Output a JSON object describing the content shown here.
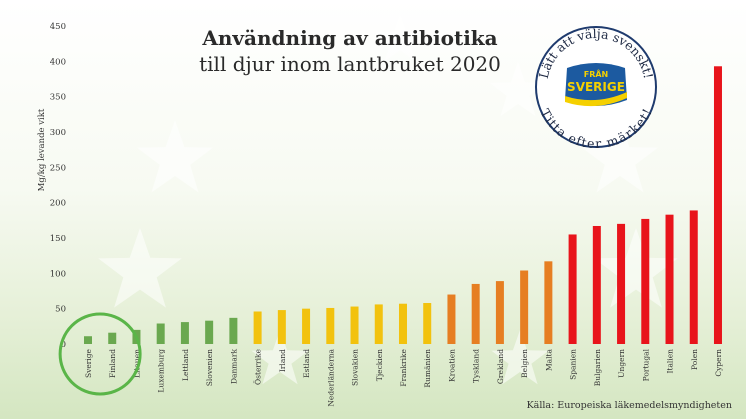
{
  "chart_data": {
    "type": "bar",
    "title": "Användning av antibiotika",
    "subtitle": "till djur inom lantbruket 2020",
    "ylabel": "Mg/kg levande vikt",
    "xlabel": "",
    "ylim": [
      0,
      450
    ],
    "yticks": [
      "0",
      "50",
      "100",
      "150",
      "200",
      "250",
      "300",
      "350",
      "400",
      "450"
    ],
    "grid": false,
    "categories": [
      "Sverige",
      "Finland",
      "Litauen",
      "Luxemburg",
      "Lettland",
      "Slovenien",
      "Danmark",
      "Österrike",
      "Irland",
      "Estland",
      "Nederländerna",
      "Slovakien",
      "Tjeckien",
      "Frankrike",
      "Rumänien",
      "Kroatien",
      "Tyskland",
      "Grekland",
      "Belgien",
      "Malta",
      "Spanien",
      "Bulgarien",
      "Ungern",
      "Portugal",
      "Italien",
      "Polen",
      "Cypern"
    ],
    "values": [
      11,
      16,
      20,
      29,
      31,
      33,
      37,
      46,
      48,
      50,
      51,
      53,
      56,
      57,
      58,
      70,
      85,
      89,
      104,
      117,
      155,
      167,
      170,
      177,
      183,
      189,
      393
    ],
    "colors": [
      "#6aa84f",
      "#6aa84f",
      "#6aa84f",
      "#6aa84f",
      "#6aa84f",
      "#6aa84f",
      "#6aa84f",
      "#f2c20e",
      "#f2c20e",
      "#f2c20e",
      "#f2c20e",
      "#f2c20e",
      "#f2c20e",
      "#f2c20e",
      "#f2c20e",
      "#e67e22",
      "#e67e22",
      "#e67e22",
      "#e67e22",
      "#e67e22",
      "#e8141b",
      "#e8141b",
      "#e8141b",
      "#e8141b",
      "#e8141b",
      "#e8141b",
      "#e8141b"
    ],
    "highlight_categories": [
      "Sverige",
      "Finland"
    ],
    "highlight_color": "#5ab548"
  },
  "badge": {
    "top_text": "Lätt att välja svenskt!",
    "bottom_text": "Titta efter märket!",
    "logo_line1": "FRÅN",
    "logo_line2": "SVERIGE",
    "logo_color": "#1c5aa0",
    "logo_accent": "#f5d000"
  },
  "source": "Källa: Europeiska läkemedelsmyndigheten"
}
